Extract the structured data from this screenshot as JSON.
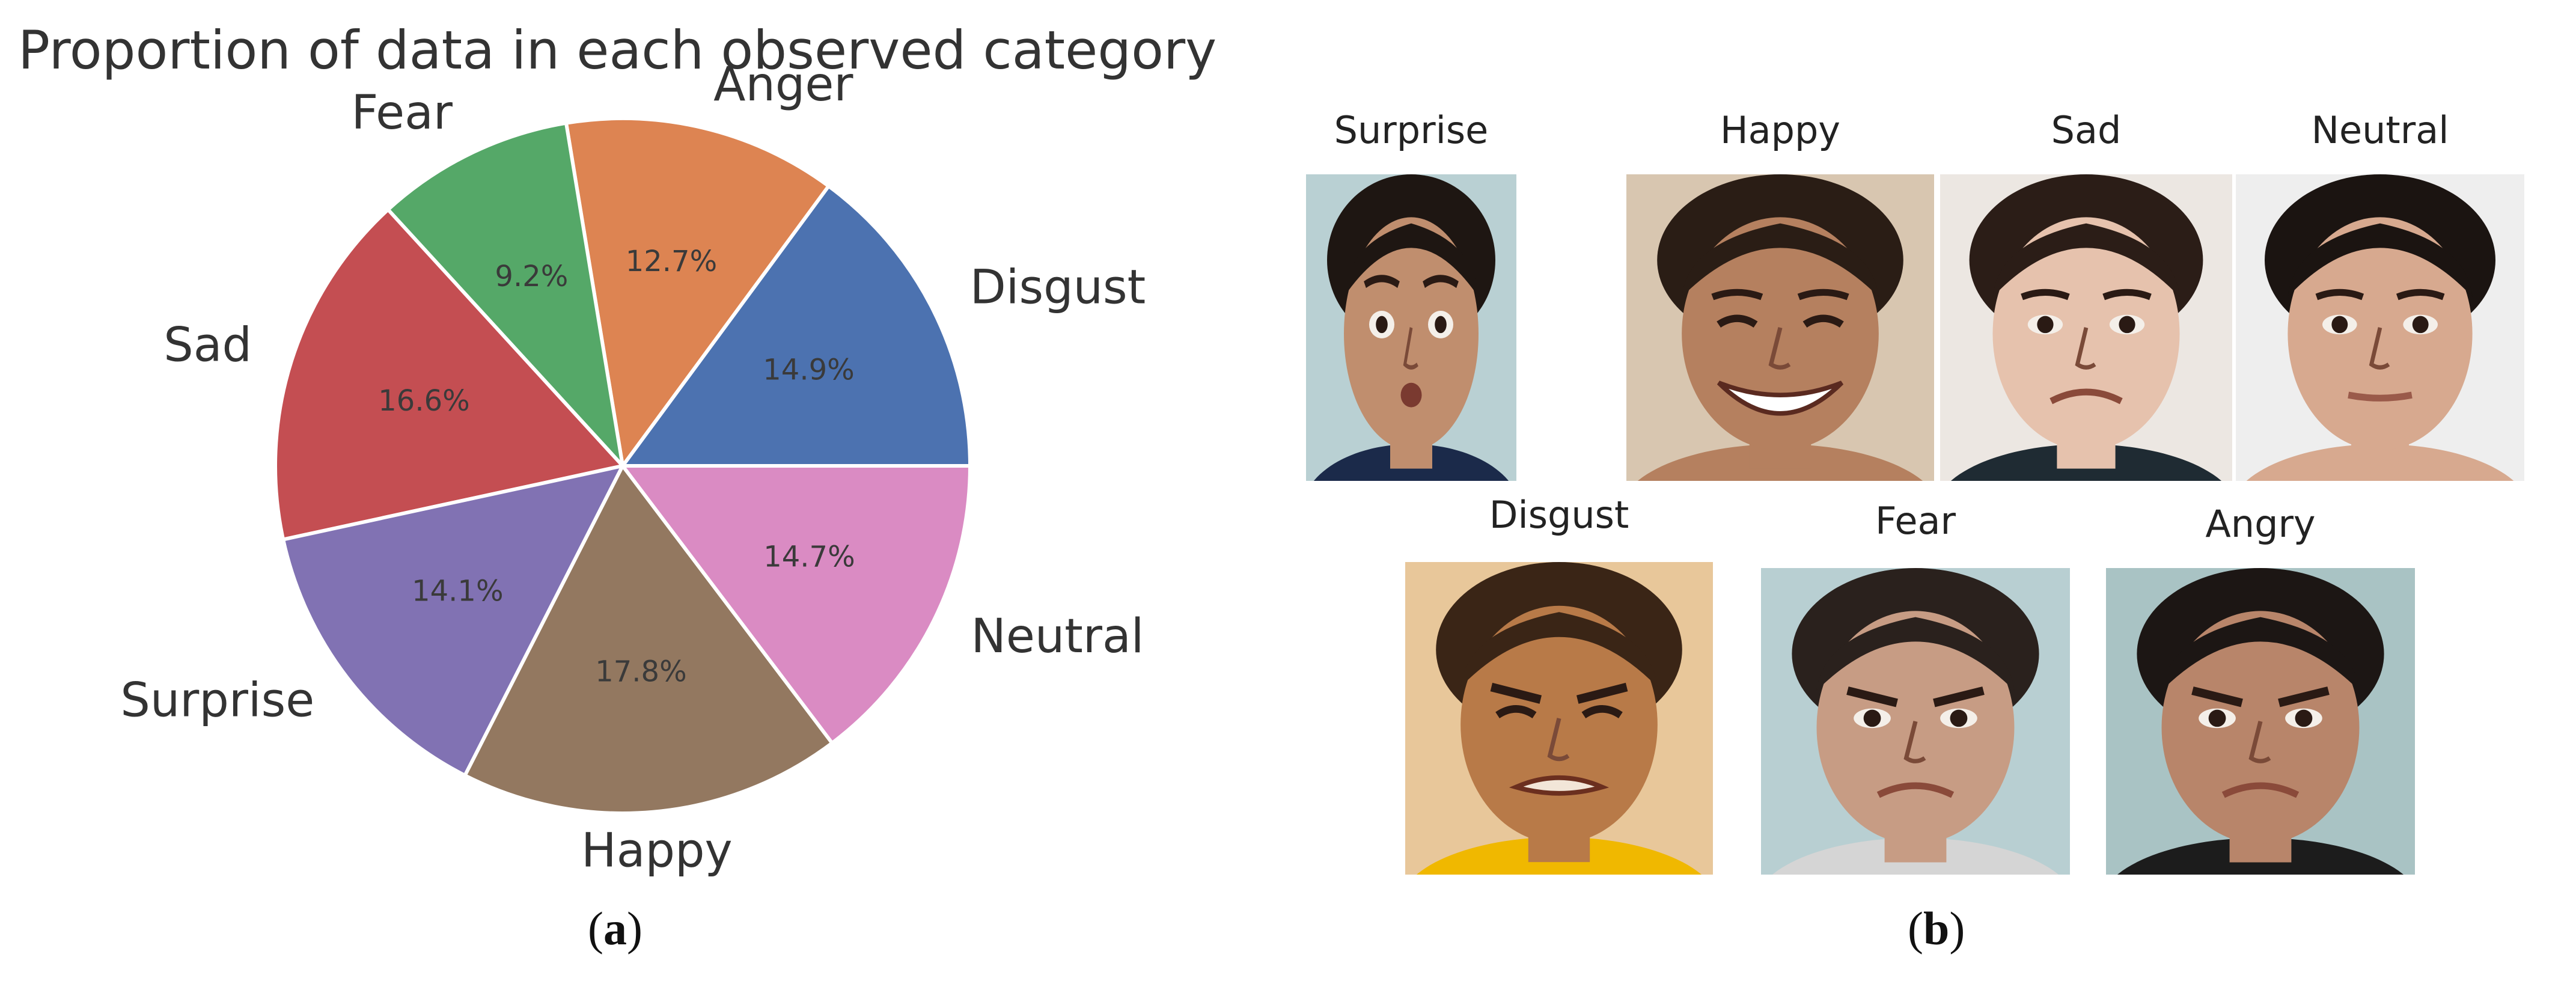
{
  "chart_data": {
    "type": "pie",
    "title": "Proportion of data in each observed category",
    "slices": [
      {
        "label": "Disgust",
        "value": 14.9,
        "pct_label": "14.9%",
        "color": "#4c72b0"
      },
      {
        "label": "Anger",
        "value": 12.7,
        "pct_label": "12.7%",
        "color": "#dd8452"
      },
      {
        "label": "Fear",
        "value": 9.2,
        "pct_label": "9.2%",
        "color": "#55a868"
      },
      {
        "label": "Sad",
        "value": 16.6,
        "pct_label": "16.6%",
        "color": "#c44e52"
      },
      {
        "label": "Surprise",
        "value": 14.1,
        "pct_label": "14.1%",
        "color": "#8172b3"
      },
      {
        "label": "Happy",
        "value": 17.8,
        "pct_label": "17.8%",
        "color": "#937860"
      },
      {
        "label": "Neutral",
        "value": 14.7,
        "pct_label": "14.7%",
        "color": "#da8bc3"
      }
    ],
    "start_angle_deg": 0,
    "direction": "counterclockwise",
    "legend": "none"
  },
  "panel_labels": {
    "a": "a",
    "b": "b"
  },
  "faces": [
    {
      "label": "Surprise",
      "icon": "child-face-photo-surprise",
      "skin": "#c08e6e",
      "hair": "#1e1612",
      "bg": "#b9d0d3",
      "shirt": "#1b2a4a",
      "expression": "surprise"
    },
    {
      "label": "Happy",
      "icon": "child-face-photo-happy",
      "skin": "#b5805f",
      "hair": "#2a1d15",
      "bg": "#d8c6b0",
      "shirt": "#b5805f",
      "expression": "happy"
    },
    {
      "label": "Sad",
      "icon": "child-face-photo-sad",
      "skin": "#e6c2ad",
      "hair": "#2b1d17",
      "bg": "#ece7e2",
      "shirt": "#1f2b33",
      "expression": "sad"
    },
    {
      "label": "Neutral",
      "icon": "child-face-photo-neutral",
      "skin": "#d7a98f",
      "hair": "#1b1411",
      "bg": "#eeeeee",
      "shirt": "#d7a98f",
      "expression": "neutral"
    },
    {
      "label": "Disgust",
      "icon": "child-face-photo-disgust",
      "skin": "#b87a48",
      "hair": "#3a2516",
      "bg": "#e8c79a",
      "shirt": "#f0b800",
      "expression": "disgust"
    },
    {
      "label": "Fear",
      "icon": "child-face-photo-fear",
      "skin": "#c79c84",
      "hair": "#2a211d",
      "bg": "#b8cfd2",
      "shirt": "#d5d5d5",
      "expression": "fear"
    },
    {
      "label": "Angry",
      "icon": "child-face-photo-angry",
      "skin": "#b8856a",
      "hair": "#1c1614",
      "bg": "#a9c3c4",
      "shirt": "#1c1c1c",
      "expression": "angry"
    }
  ]
}
